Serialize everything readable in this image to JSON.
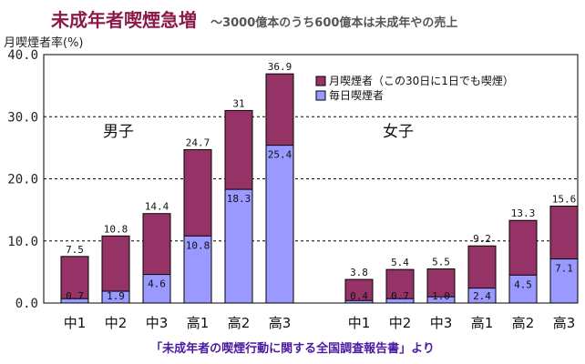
{
  "chart_data": {
    "type": "bar",
    "title": "未成年者喫煙急増",
    "subtitle": "～3000億本のうち600億本は未成年やの売上",
    "ylabel": "月喫煙者率(%)",
    "ylim": [
      0,
      40
    ],
    "yticks": [
      "0.0",
      "10.0",
      "20.0",
      "30.0",
      "40.0"
    ],
    "grid": true,
    "legend_position": "top-right",
    "groups": [
      {
        "label": "男子",
        "categories": [
          "中1",
          "中2",
          "中3",
          "高1",
          "高2",
          "高3"
        ]
      },
      {
        "label": "女子",
        "categories": [
          "中1",
          "中2",
          "中3",
          "高1",
          "高2",
          "高3"
        ]
      }
    ],
    "series": [
      {
        "name": "月喫煙者（この30日に1日でも喫煙）",
        "color": "#963366",
        "values": [
          7.5,
          10.8,
          14.4,
          24.7,
          31,
          36.9,
          3.8,
          5.4,
          5.5,
          9.2,
          13.3,
          15.6
        ],
        "labels": [
          "7.5",
          "10.8",
          "14.4",
          "24.7",
          "31",
          "36.9",
          "3.8",
          "5.4",
          "5.5",
          "9.2",
          "13.3",
          "15.6"
        ]
      },
      {
        "name": "毎日喫煙者",
        "color": "#9999ff",
        "values": [
          0.7,
          1.9,
          4.6,
          10.8,
          18.3,
          25.4,
          0.4,
          0.7,
          1.0,
          2.4,
          4.5,
          7.1
        ],
        "labels": [
          "0.7",
          "1.9",
          "4.6",
          "10.8",
          "18.3",
          "25.4",
          "0.4",
          "0.7",
          "1.0",
          "2.4",
          "4.5",
          "7.1"
        ]
      }
    ]
  },
  "source_note": "「未成年者の喫煙行動に関する全国調査報告書」より"
}
